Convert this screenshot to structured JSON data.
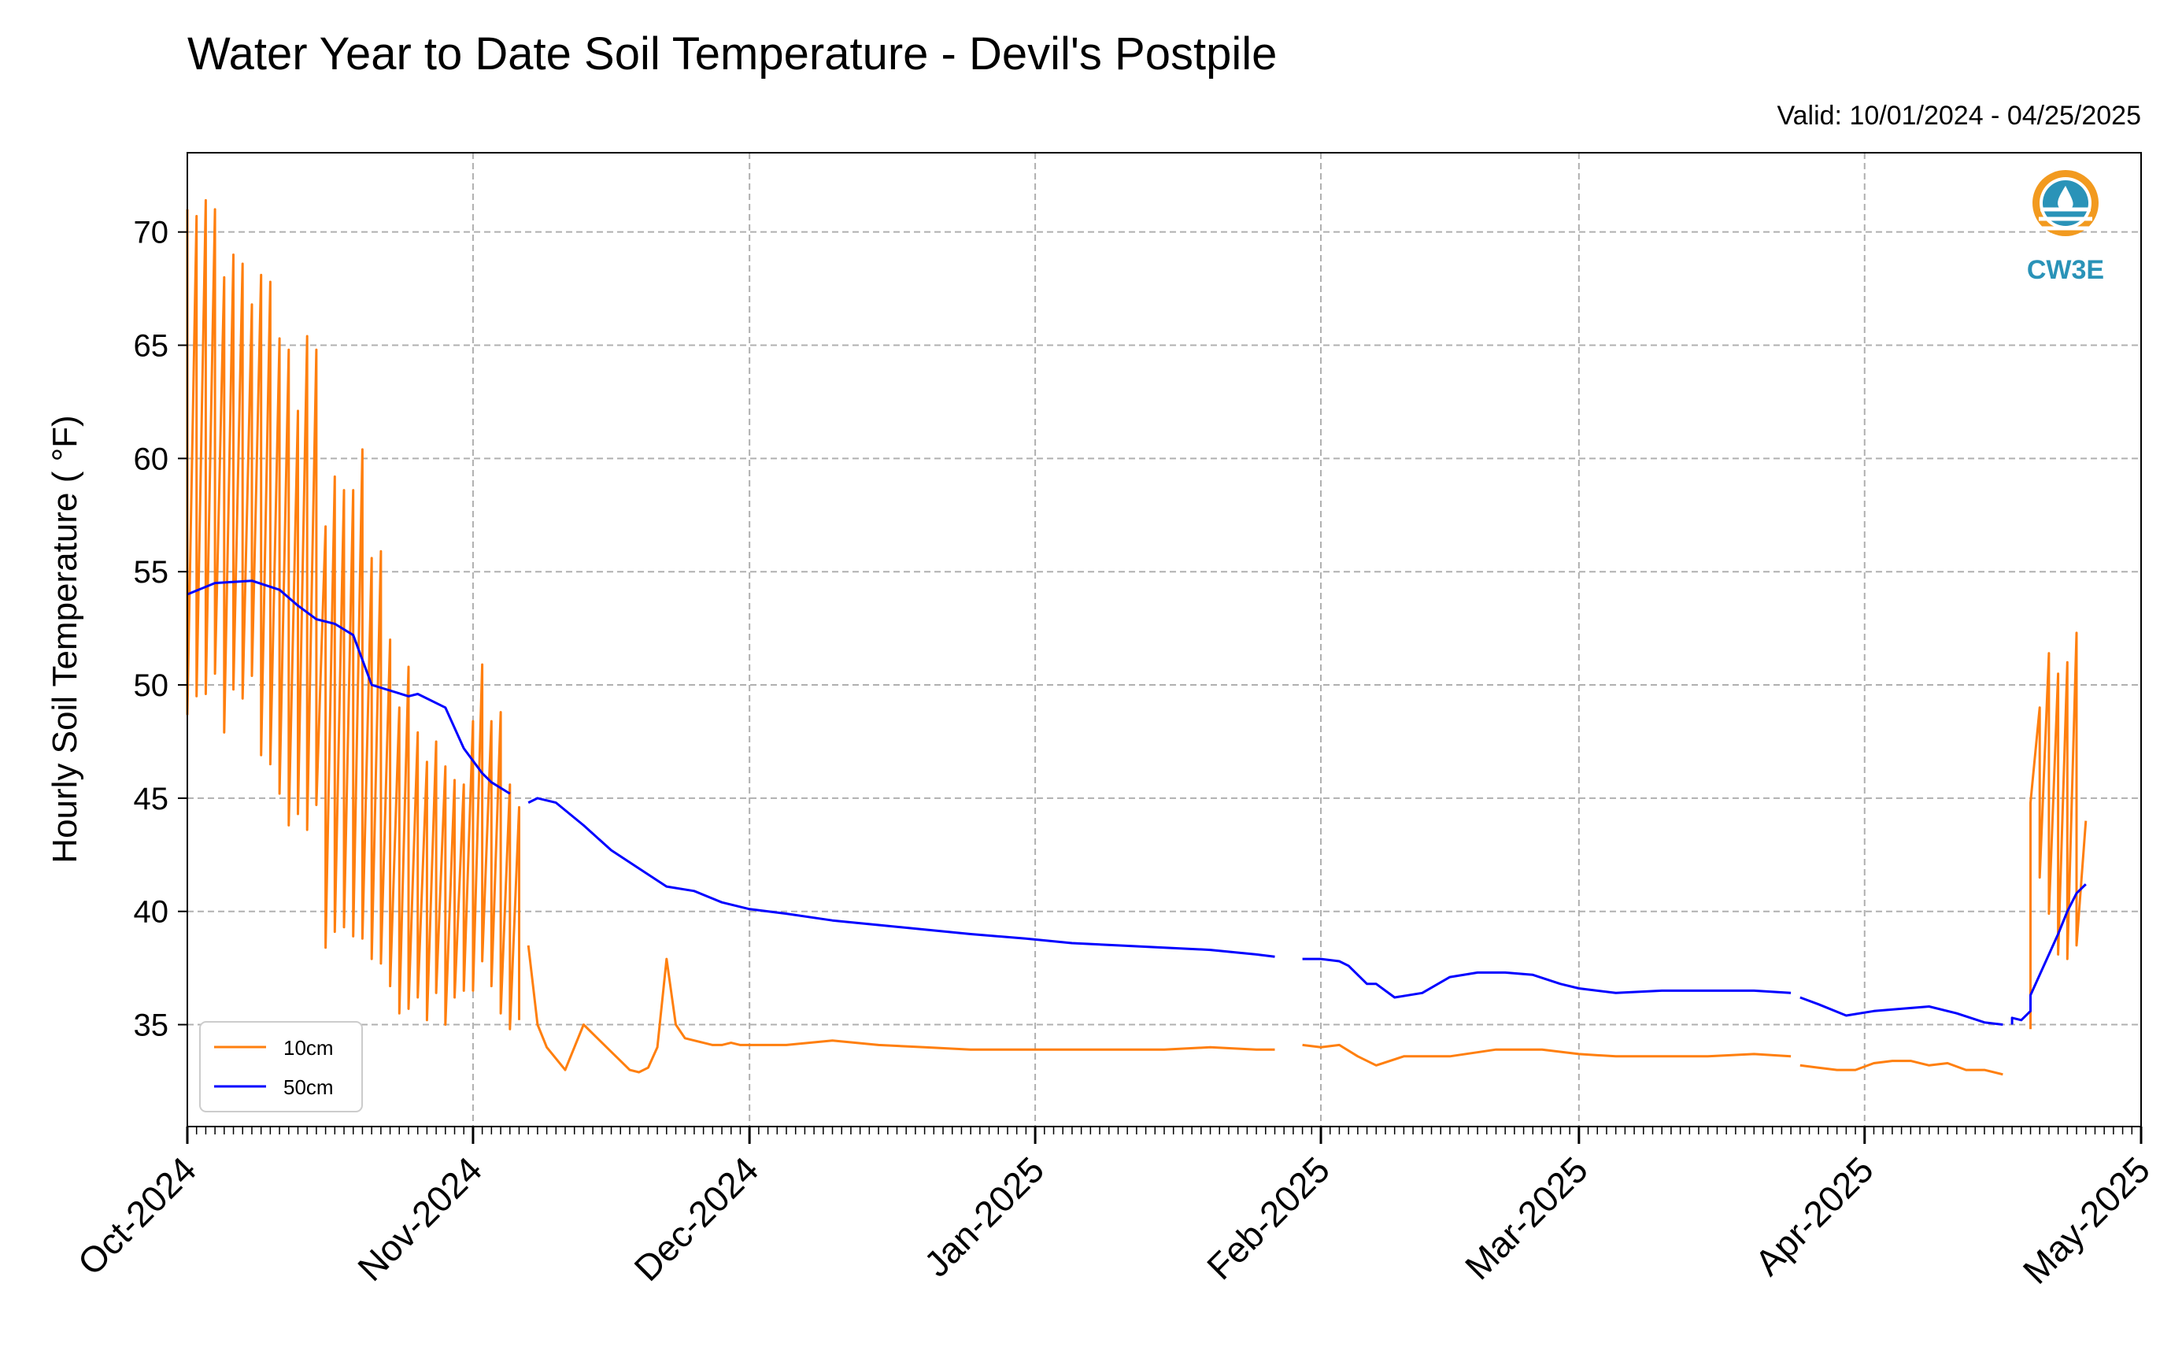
{
  "chart_data": {
    "type": "line",
    "title": "Water Year to Date Soil Temperature - Devil's Postpile",
    "subtitle": "Valid: 10/01/2024 - 04/25/2025",
    "ylabel": "Hourly Soil Temperature ( °F)",
    "xlabel": "",
    "xlim": [
      "2024-10-01",
      "2025-05-01"
    ],
    "ylim": [
      30.5,
      73.5
    ],
    "yticks": [
      35,
      40,
      45,
      50,
      55,
      60,
      65,
      70
    ],
    "xticks": [
      {
        "date": "2024-10-01",
        "label": "Oct-2024"
      },
      {
        "date": "2024-11-01",
        "label": "Nov-2024"
      },
      {
        "date": "2024-12-01",
        "label": "Dec-2024"
      },
      {
        "date": "2025-01-01",
        "label": "Jan-2025"
      },
      {
        "date": "2025-02-01",
        "label": "Feb-2025"
      },
      {
        "date": "2025-03-01",
        "label": "Mar-2025"
      },
      {
        "date": "2025-04-01",
        "label": "Apr-2025"
      },
      {
        "date": "2025-05-01",
        "label": "May-2025"
      }
    ],
    "grid": true,
    "legend_position": "bottom-left",
    "series": [
      {
        "name": "10cm",
        "color": "#ff7f0e",
        "segments": [
          {
            "dates": [
              "2024-10-01",
              "2024-10-01",
              "2024-10-02",
              "2024-10-02",
              "2024-10-03",
              "2024-10-03",
              "2024-10-04",
              "2024-10-04",
              "2024-10-05",
              "2024-10-05",
              "2024-10-06",
              "2024-10-06",
              "2024-10-07",
              "2024-10-07",
              "2024-10-08",
              "2024-10-08",
              "2024-10-09",
              "2024-10-09",
              "2024-10-10",
              "2024-10-10",
              "2024-10-11",
              "2024-10-11",
              "2024-10-12",
              "2024-10-12",
              "2024-10-13",
              "2024-10-13",
              "2024-10-14",
              "2024-10-14",
              "2024-10-15",
              "2024-10-15",
              "2024-10-16",
              "2024-10-16",
              "2024-10-17",
              "2024-10-17",
              "2024-10-18",
              "2024-10-18",
              "2024-10-19",
              "2024-10-19",
              "2024-10-20",
              "2024-10-20",
              "2024-10-21",
              "2024-10-21",
              "2024-10-22",
              "2024-10-22",
              "2024-10-23",
              "2024-10-23",
              "2024-10-24",
              "2024-10-24",
              "2024-10-25",
              "2024-10-25",
              "2024-10-26",
              "2024-10-26",
              "2024-10-27",
              "2024-10-27",
              "2024-10-28",
              "2024-10-28",
              "2024-10-29",
              "2024-10-29",
              "2024-10-30",
              "2024-10-30",
              "2024-10-31",
              "2024-10-31",
              "2024-11-01",
              "2024-11-01",
              "2024-11-02",
              "2024-11-02",
              "2024-11-03",
              "2024-11-03",
              "2024-11-04",
              "2024-11-04",
              "2024-11-05",
              "2024-11-05",
              "2024-11-06",
              "2024-11-06"
            ],
            "values": [
              71.0,
              48.7,
              70.7,
              49.5,
              71.4,
              49.6,
              71.0,
              50.5,
              68.0,
              47.9,
              69.0,
              49.8,
              68.6,
              49.4,
              66.8,
              50.4,
              68.1,
              46.9,
              67.8,
              46.5,
              65.3,
              45.2,
              64.8,
              43.8,
              62.1,
              44.3,
              65.4,
              43.6,
              64.8,
              44.7,
              57.0,
              38.4,
              59.2,
              39.1,
              58.6,
              39.3,
              58.6,
              38.9,
              60.4,
              38.8,
              55.6,
              37.9,
              55.9,
              37.7,
              52.0,
              36.7,
              49.0,
              35.5,
              50.8,
              35.7,
              47.9,
              36.2,
              46.6,
              35.2,
              47.5,
              36.4,
              46.4,
              35.0,
              45.8,
              36.2,
              45.6,
              36.5,
              48.4,
              36.5,
              50.9,
              37.8,
              48.4,
              36.7,
              48.8,
              35.5,
              45.6,
              34.8,
              44.6,
              35.2
            ]
          },
          {
            "dates": [
              "2024-11-07",
              "2024-11-08",
              "2024-11-09",
              "2024-11-10",
              "2024-11-11",
              "2024-11-12",
              "2024-11-13",
              "2024-11-14",
              "2024-11-15",
              "2024-11-16",
              "2024-11-17",
              "2024-11-18",
              "2024-11-19",
              "2024-11-20",
              "2024-11-21",
              "2024-11-22",
              "2024-11-23",
              "2024-11-24",
              "2024-11-25",
              "2024-11-26",
              "2024-11-27",
              "2024-11-28",
              "2024-11-29",
              "2024-11-30",
              "2024-12-01",
              "2024-12-05",
              "2024-12-10",
              "2024-12-15",
              "2024-12-20",
              "2024-12-25",
              "2024-12-31",
              "2025-01-05",
              "2025-01-10",
              "2025-01-15",
              "2025-01-20",
              "2025-01-25",
              "2025-01-27"
            ],
            "values": [
              38.5,
              35.0,
              34.0,
              33.5,
              33.0,
              34.0,
              35.0,
              34.6,
              34.2,
              33.8,
              33.4,
              33.0,
              32.9,
              33.1,
              34.0,
              37.9,
              35.0,
              34.4,
              34.3,
              34.2,
              34.1,
              34.1,
              34.2,
              34.1,
              34.1,
              34.1,
              34.3,
              34.1,
              34.0,
              33.9,
              33.9,
              33.9,
              33.9,
              33.9,
              34.0,
              33.9,
              33.9
            ]
          },
          {
            "dates": [
              "2025-01-30",
              "2025-02-01",
              "2025-02-03",
              "2025-02-05",
              "2025-02-07",
              "2025-02-10",
              "2025-02-15",
              "2025-02-20",
              "2025-02-25",
              "2025-03-01",
              "2025-03-05",
              "2025-03-10",
              "2025-03-15",
              "2025-03-20",
              "2025-03-24"
            ],
            "values": [
              34.1,
              34.0,
              34.1,
              33.6,
              33.2,
              33.6,
              33.6,
              33.9,
              33.9,
              33.7,
              33.6,
              33.6,
              33.6,
              33.7,
              33.6
            ]
          },
          {
            "dates": [
              "2025-03-25",
              "2025-03-27",
              "2025-03-29",
              "2025-03-31",
              "2025-04-02",
              "2025-04-04",
              "2025-04-06",
              "2025-04-08",
              "2025-04-10",
              "2025-04-12",
              "2025-04-14",
              "2025-04-16"
            ],
            "values": [
              33.2,
              33.1,
              33.0,
              33.0,
              33.3,
              33.4,
              33.4,
              33.2,
              33.3,
              33.0,
              33.0,
              32.8
            ]
          },
          {
            "dates": [
              "2025-04-19",
              "2025-04-19",
              "2025-04-20",
              "2025-04-20",
              "2025-04-21",
              "2025-04-21",
              "2025-04-22",
              "2025-04-22",
              "2025-04-23",
              "2025-04-23",
              "2025-04-24",
              "2025-04-24",
              "2025-04-25"
            ],
            "values": [
              34.8,
              44.8,
              49.0,
              41.5,
              51.4,
              39.9,
              50.5,
              38.1,
              51.0,
              37.9,
              52.3,
              38.5,
              44.0
            ]
          }
        ]
      },
      {
        "name": "50cm",
        "color": "#0000ff",
        "segments": [
          {
            "dates": [
              "2024-10-01",
              "2024-10-04",
              "2024-10-08",
              "2024-10-11",
              "2024-10-13",
              "2024-10-15",
              "2024-10-17",
              "2024-10-19",
              "2024-10-21",
              "2024-10-25",
              "2024-10-26",
              "2024-10-29",
              "2024-10-31",
              "2024-11-02",
              "2024-11-03",
              "2024-11-05"
            ],
            "values": [
              54.0,
              54.5,
              54.6,
              54.2,
              53.5,
              52.9,
              52.7,
              52.2,
              50.0,
              49.5,
              49.6,
              49.0,
              47.2,
              46.1,
              45.7,
              45.2
            ]
          },
          {
            "dates": [
              "2024-11-07",
              "2024-11-08",
              "2024-11-10",
              "2024-11-13",
              "2024-11-16",
              "2024-11-19",
              "2024-11-22",
              "2024-11-25",
              "2024-11-28",
              "2024-12-01",
              "2024-12-05",
              "2024-12-10",
              "2024-12-15",
              "2024-12-20",
              "2024-12-25",
              "2024-12-31",
              "2025-01-05",
              "2025-01-10",
              "2025-01-15",
              "2025-01-20",
              "2025-01-25",
              "2025-01-27"
            ],
            "values": [
              44.8,
              45.0,
              44.8,
              43.8,
              42.7,
              41.9,
              41.1,
              40.9,
              40.4,
              40.1,
              39.9,
              39.6,
              39.4,
              39.2,
              39.0,
              38.8,
              38.6,
              38.5,
              38.4,
              38.3,
              38.1,
              38.0
            ]
          },
          {
            "dates": [
              "2025-01-30",
              "2025-02-01",
              "2025-02-03",
              "2025-02-04",
              "2025-02-05",
              "2025-02-06",
              "2025-02-07",
              "2025-02-09",
              "2025-02-12",
              "2025-02-15",
              "2025-02-18",
              "2025-02-21",
              "2025-02-24",
              "2025-02-27",
              "2025-03-01",
              "2025-03-05",
              "2025-03-10",
              "2025-03-15",
              "2025-03-20",
              "2025-03-24"
            ],
            "values": [
              37.9,
              37.9,
              37.8,
              37.6,
              37.2,
              36.8,
              36.8,
              36.2,
              36.4,
              37.1,
              37.3,
              37.3,
              37.2,
              36.8,
              36.6,
              36.4,
              36.5,
              36.5,
              36.5,
              36.4
            ]
          },
          {
            "dates": [
              "2025-03-25",
              "2025-03-27",
              "2025-03-30",
              "2025-04-02",
              "2025-04-05",
              "2025-04-08",
              "2025-04-11",
              "2025-04-14",
              "2025-04-16"
            ],
            "values": [
              36.2,
              35.9,
              35.4,
              35.6,
              35.7,
              35.8,
              35.5,
              35.1,
              35.0
            ]
          },
          {
            "dates": [
              "2025-04-17",
              "2025-04-17",
              "2025-04-18",
              "2025-04-19",
              "2025-04-19",
              "2025-04-20",
              "2025-04-21",
              "2025-04-22",
              "2025-04-23",
              "2025-04-24",
              "2025-04-25"
            ],
            "values": [
              35.0,
              35.3,
              35.2,
              35.6,
              36.3,
              37.2,
              38.1,
              39.0,
              40.0,
              40.8,
              41.2
            ]
          }
        ]
      }
    ]
  },
  "logo": {
    "text": "CW3E",
    "color": "#2a93b8",
    "accent": "#f29a1f"
  },
  "legend": {
    "items": [
      {
        "label": "10cm",
        "color": "#ff7f0e"
      },
      {
        "label": "50cm",
        "color": "#0000ff"
      }
    ]
  }
}
